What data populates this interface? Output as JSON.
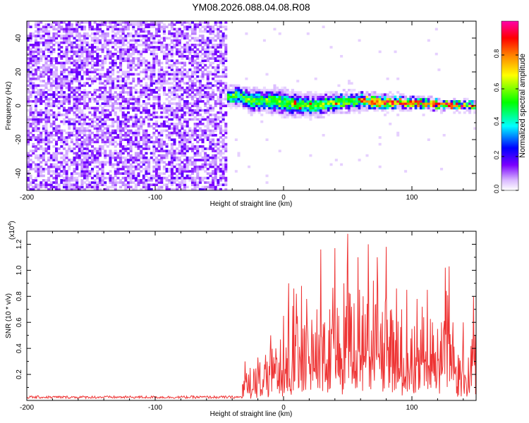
{
  "title": "YM08.2026.088.04.08.R08",
  "chart_data": [
    {
      "type": "heatmap",
      "title": "YM08.2026.088.04.08.R08",
      "xlabel": "Height of straight line (km)",
      "ylabel": "Frequency (Hz)",
      "xlim": [
        -200,
        150
      ],
      "ylim": [
        -50,
        50
      ],
      "x_ticks": [
        -200,
        -100,
        0,
        100
      ],
      "y_ticks": [
        -40,
        -20,
        0,
        20,
        40
      ],
      "colorbar": {
        "label": "Normalized spectral amplitude",
        "range": [
          0,
          1
        ],
        "ticks": [
          0.0,
          0.2,
          0.4,
          0.6,
          0.8
        ],
        "tick_labels": [
          "0.0",
          "0.2",
          "0.4",
          "0.6",
          "0.8"
        ],
        "colormap": [
          "#ffffff",
          "#7a00ff",
          "#0000ff",
          "#00ffff",
          "#00ff00",
          "#ffff00",
          "#ff8000",
          "#ff0000",
          "#ff00aa"
        ]
      },
      "noise_region": {
        "x_range": [
          -200,
          -43
        ],
        "typical_amplitude": 0.15,
        "color": "#7a00ff"
      },
      "signal_band": {
        "x_range": [
          -43,
          150
        ],
        "center_track": [
          [
            -43,
            5
          ],
          [
            -35,
            6
          ],
          [
            -25,
            3
          ],
          [
            -10,
            3
          ],
          [
            0,
            2
          ],
          [
            20,
            0
          ],
          [
            40,
            2
          ],
          [
            60,
            3
          ],
          [
            80,
            2
          ],
          [
            100,
            2
          ],
          [
            120,
            1
          ],
          [
            150,
            0
          ]
        ],
        "halfwidth_track": [
          [
            -43,
            3
          ],
          [
            0,
            4
          ],
          [
            50,
            3
          ],
          [
            100,
            2
          ],
          [
            150,
            1.5
          ]
        ],
        "peak_amplitude": 0.9
      }
    },
    {
      "type": "line",
      "xlabel": "Height of straight line (km)",
      "ylabel": "SNR (10 * v/v)",
      "y_scale_label": "(x10",
      "y_scale_exp": "4",
      "xlim": [
        -200,
        150
      ],
      "ylim": [
        0,
        1.3
      ],
      "x_ticks": [
        -200,
        -100,
        0,
        100
      ],
      "y_ticks": [
        0.2,
        0.4,
        0.6,
        0.8,
        1.0,
        1.2
      ],
      "y_tick_labels": [
        "0.2",
        "0.4",
        "0.6",
        "0.8",
        "1.0",
        "1.2"
      ],
      "series": [
        {
          "name": "SNR",
          "color": "#ee3333",
          "baseline": {
            "x_range": [
              -200,
              -32
            ],
            "level": 0.025
          },
          "peaks": [
            [
              -32,
              0.12
            ],
            [
              -30,
              0.3
            ],
            [
              -26,
              0.25
            ],
            [
              -20,
              0.33
            ],
            [
              -14,
              0.35
            ],
            [
              -10,
              0.5
            ],
            [
              -6,
              0.4
            ],
            [
              0,
              0.65
            ],
            [
              4,
              0.9
            ],
            [
              8,
              0.86
            ],
            [
              10,
              0.82
            ],
            [
              14,
              0.88
            ],
            [
              18,
              0.78
            ],
            [
              22,
              0.62
            ],
            [
              26,
              0.7
            ],
            [
              29,
              1.16
            ],
            [
              32,
              0.6
            ],
            [
              36,
              0.7
            ],
            [
              40,
              1.17
            ],
            [
              43,
              0.65
            ],
            [
              47,
              0.9
            ],
            [
              50,
              1.28
            ],
            [
              53,
              0.72
            ],
            [
              58,
              1.1
            ],
            [
              62,
              0.8
            ],
            [
              66,
              1.2
            ],
            [
              70,
              0.92
            ],
            [
              73,
              1.1
            ],
            [
              77,
              0.68
            ],
            [
              80,
              1.18
            ],
            [
              84,
              0.7
            ],
            [
              88,
              0.86
            ],
            [
              92,
              0.7
            ],
            [
              96,
              0.85
            ],
            [
              100,
              0.55
            ],
            [
              104,
              0.78
            ],
            [
              108,
              0.72
            ],
            [
              112,
              0.85
            ],
            [
              116,
              0.6
            ],
            [
              120,
              0.55
            ],
            [
              123,
              0.6
            ],
            [
              126,
              1.02
            ],
            [
              129,
              1.03
            ],
            [
              132,
              0.6
            ],
            [
              136,
              0.35
            ],
            [
              140,
              0.6
            ],
            [
              144,
              0.33
            ],
            [
              148,
              0.8
            ],
            [
              150,
              0.55
            ]
          ]
        }
      ]
    }
  ]
}
